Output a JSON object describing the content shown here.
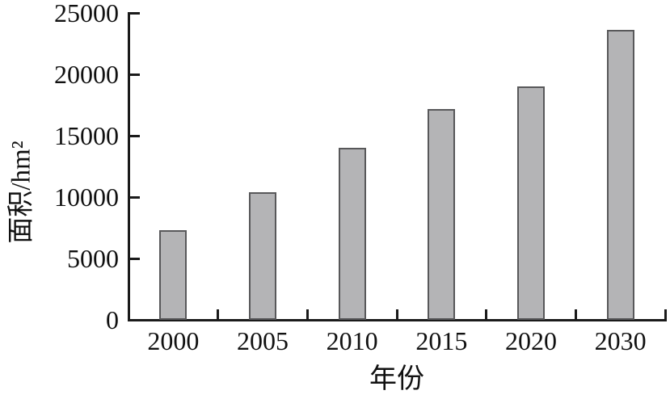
{
  "figure": {
    "background": "#ffffff"
  },
  "chart_data": {
    "type": "bar",
    "title": "",
    "xlabel": "年份",
    "ylabel": "面积/hm²",
    "categories": [
      "2000",
      "2005",
      "2010",
      "2015",
      "2020",
      "2030"
    ],
    "values": [
      7300,
      10400,
      14000,
      17200,
      19000,
      23600
    ],
    "ylim": [
      0,
      25000
    ],
    "yticks": [
      0,
      5000,
      10000,
      15000,
      20000,
      25000
    ],
    "ytick_labels": [
      "0",
      "5000",
      "10000",
      "15000",
      "20000",
      "25000"
    ],
    "grid": "off",
    "legend": "none",
    "tick_direction": "in",
    "colors": {
      "bar_fill": "#b4b4b6",
      "bar_border": "#58585a",
      "axis": "#1a1a1a",
      "text": "#111111"
    }
  }
}
